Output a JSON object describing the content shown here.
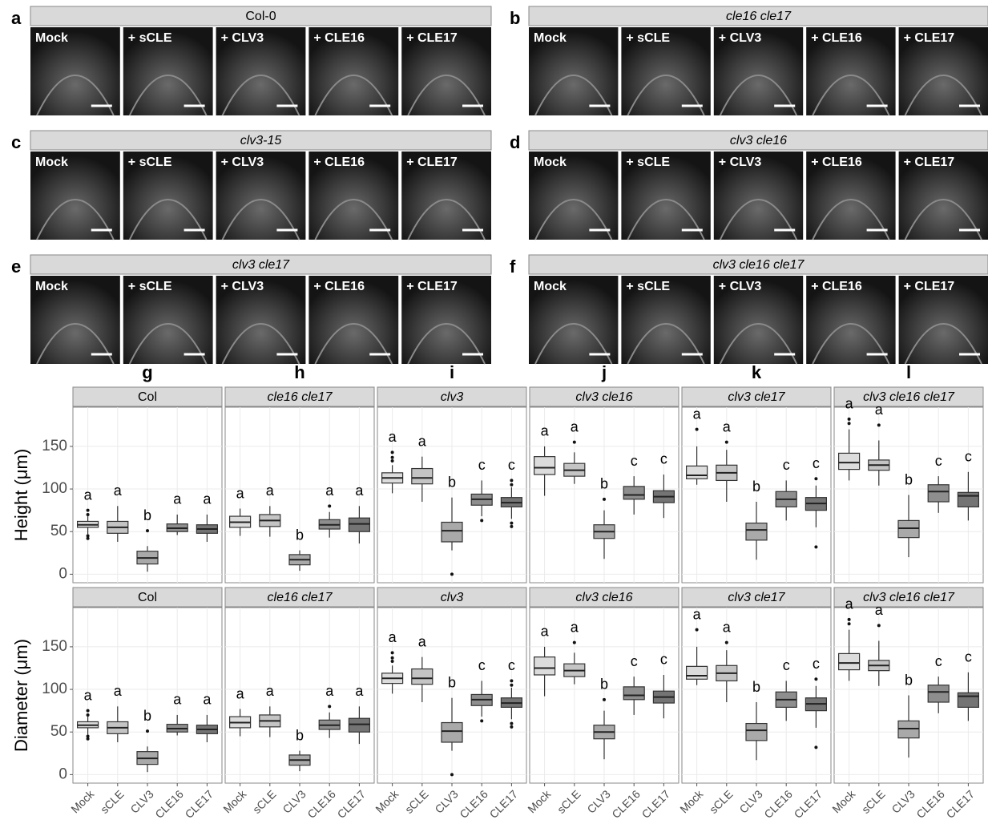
{
  "image_panels": [
    {
      "letter": "a",
      "title": "Col-0",
      "labels": [
        "Mock",
        "+ sCLE",
        "+ CLV3",
        "+ CLE16",
        "+ CLE17"
      ]
    },
    {
      "letter": "b",
      "title": "cle16 cle17",
      "labels": [
        "Mock",
        "+ sCLE",
        "+ CLV3",
        "+ CLE16",
        "+ CLE17"
      ]
    },
    {
      "letter": "c",
      "title": "clv3-15",
      "labels": [
        "Mock",
        "+ sCLE",
        "+ CLV3",
        "+ CLE16",
        "+ CLE17"
      ]
    },
    {
      "letter": "d",
      "title": "clv3 cle16",
      "labels": [
        "Mock",
        "+ sCLE",
        "+ CLV3",
        "+ CLE16",
        "+ CLE17"
      ]
    },
    {
      "letter": "e",
      "title": "clv3 cle17",
      "labels": [
        "Mock",
        "+ sCLE",
        "+ CLV3",
        "+ CLE16",
        "+ CLE17"
      ]
    },
    {
      "letter": "f",
      "title": "clv3 cle16 cle17",
      "labels": [
        "Mock",
        "+ sCLE",
        "+ CLV3",
        "+ CLE16",
        "+ CLE17"
      ]
    }
  ],
  "chart_data": [
    {
      "type": "box",
      "panel_letter": "g",
      "title": "Col",
      "ylabel": "Height (μm)",
      "ylim": [
        -10,
        196
      ],
      "yticks": [
        0,
        50,
        100,
        150
      ],
      "grid": true,
      "colors": [
        "#dcdcdc",
        "#c4c4c4",
        "#a9a9a9",
        "#8e8e8e",
        "#747474"
      ],
      "boxes": [
        {
          "whislo": 47,
          "q1": 55,
          "med": 58,
          "q3": 62,
          "whishi": 68,
          "fliers": [
            42,
            45,
            70,
            75
          ],
          "group": "a"
        },
        {
          "whislo": 38,
          "q1": 48,
          "med": 55,
          "q3": 62,
          "whishi": 80,
          "fliers": [],
          "group": "a"
        },
        {
          "whislo": 3,
          "q1": 12,
          "med": 19,
          "q3": 27,
          "whishi": 33,
          "fliers": [
            51
          ],
          "group": "b"
        },
        {
          "whislo": 46,
          "q1": 50,
          "med": 54,
          "q3": 59,
          "whishi": 70,
          "fliers": [],
          "group": "a"
        },
        {
          "whislo": 38,
          "q1": 48,
          "med": 53,
          "q3": 58,
          "whishi": 70,
          "fliers": [],
          "group": "a"
        }
      ]
    },
    {
      "type": "box",
      "panel_letter": "h",
      "title": "cle16 cle17",
      "ylim": [
        -10,
        196
      ],
      "yticks": [
        0,
        50,
        100,
        150
      ],
      "grid": true,
      "colors": [
        "#dcdcdc",
        "#c4c4c4",
        "#a9a9a9",
        "#8e8e8e",
        "#747474"
      ],
      "boxes": [
        {
          "whislo": 45,
          "q1": 55,
          "med": 61,
          "q3": 68,
          "whishi": 77,
          "fliers": [],
          "group": "a"
        },
        {
          "whislo": 44,
          "q1": 56,
          "med": 63,
          "q3": 70,
          "whishi": 80,
          "fliers": [],
          "group": "a"
        },
        {
          "whislo": 4,
          "q1": 11,
          "med": 17,
          "q3": 23,
          "whishi": 28,
          "fliers": [],
          "group": "b"
        },
        {
          "whislo": 43,
          "q1": 53,
          "med": 58,
          "q3": 64,
          "whishi": 73,
          "fliers": [
            80
          ],
          "group": "a"
        },
        {
          "whislo": 36,
          "q1": 50,
          "med": 59,
          "q3": 66,
          "whishi": 80,
          "fliers": [],
          "group": "a"
        }
      ]
    },
    {
      "type": "box",
      "panel_letter": "i",
      "title": "clv3",
      "ylim": [
        -10,
        196
      ],
      "yticks": [
        0,
        50,
        100,
        150
      ],
      "grid": true,
      "colors": [
        "#dcdcdc",
        "#c4c4c4",
        "#a9a9a9",
        "#8e8e8e",
        "#747474"
      ],
      "boxes": [
        {
          "whislo": 95,
          "q1": 107,
          "med": 113,
          "q3": 119,
          "whishi": 128,
          "fliers": [
            133,
            137,
            143
          ],
          "group": "a"
        },
        {
          "whislo": 85,
          "q1": 106,
          "med": 113,
          "q3": 124,
          "whishi": 138,
          "fliers": [],
          "group": "a"
        },
        {
          "whislo": 28,
          "q1": 38,
          "med": 51,
          "q3": 61,
          "whishi": 90,
          "fliers": [
            0
          ],
          "group": "b"
        },
        {
          "whislo": 68,
          "q1": 81,
          "med": 88,
          "q3": 94,
          "whishi": 110,
          "fliers": [
            63
          ],
          "group": "c"
        },
        {
          "whislo": 65,
          "q1": 79,
          "med": 84,
          "q3": 90,
          "whishi": 102,
          "fliers": [
            56,
            60,
            105,
            110
          ],
          "group": "c"
        }
      ]
    },
    {
      "type": "box",
      "panel_letter": "j",
      "title": "clv3 cle16",
      "ylim": [
        -10,
        196
      ],
      "yticks": [
        0,
        50,
        100,
        150
      ],
      "grid": true,
      "colors": [
        "#dcdcdc",
        "#c4c4c4",
        "#a9a9a9",
        "#8e8e8e",
        "#747474"
      ],
      "boxes": [
        {
          "whislo": 92,
          "q1": 117,
          "med": 125,
          "q3": 138,
          "whishi": 150,
          "fliers": [],
          "group": "a"
        },
        {
          "whislo": 106,
          "q1": 115,
          "med": 122,
          "q3": 130,
          "whishi": 143,
          "fliers": [
            155
          ],
          "group": "a"
        },
        {
          "whislo": 18,
          "q1": 42,
          "med": 50,
          "q3": 58,
          "whishi": 75,
          "fliers": [
            88
          ],
          "group": "b"
        },
        {
          "whislo": 70,
          "q1": 88,
          "med": 93,
          "q3": 103,
          "whishi": 115,
          "fliers": [],
          "group": "c"
        },
        {
          "whislo": 66,
          "q1": 84,
          "med": 91,
          "q3": 98,
          "whishi": 117,
          "fliers": [],
          "group": "c"
        }
      ]
    },
    {
      "type": "box",
      "panel_letter": "k",
      "title": "clv3 cle17",
      "ylim": [
        -10,
        196
      ],
      "yticks": [
        0,
        50,
        100,
        150
      ],
      "grid": true,
      "colors": [
        "#dcdcdc",
        "#c4c4c4",
        "#a9a9a9",
        "#8e8e8e",
        "#747474"
      ],
      "boxes": [
        {
          "whislo": 105,
          "q1": 112,
          "med": 116,
          "q3": 127,
          "whishi": 150,
          "fliers": [
            170
          ],
          "group": "a"
        },
        {
          "whislo": 85,
          "q1": 110,
          "med": 119,
          "q3": 128,
          "whishi": 146,
          "fliers": [
            155
          ],
          "group": "a"
        },
        {
          "whislo": 17,
          "q1": 40,
          "med": 52,
          "q3": 60,
          "whishi": 85,
          "fliers": [],
          "group": "b"
        },
        {
          "whislo": 63,
          "q1": 79,
          "med": 88,
          "q3": 97,
          "whishi": 110,
          "fliers": [],
          "group": "c"
        },
        {
          "whislo": 55,
          "q1": 75,
          "med": 83,
          "q3": 90,
          "whishi": 104,
          "fliers": [
            32,
            112
          ],
          "group": "c"
        }
      ]
    },
    {
      "type": "box",
      "panel_letter": "l",
      "title": "clv3 cle16 cle17",
      "ylim": [
        -10,
        196
      ],
      "yticks": [
        0,
        50,
        100,
        150
      ],
      "grid": true,
      "colors": [
        "#dcdcdc",
        "#c4c4c4",
        "#a9a9a9",
        "#8e8e8e",
        "#747474"
      ],
      "boxes": [
        {
          "whislo": 110,
          "q1": 123,
          "med": 131,
          "q3": 142,
          "whishi": 170,
          "fliers": [
            177,
            182
          ],
          "group": "a"
        },
        {
          "whislo": 104,
          "q1": 122,
          "med": 128,
          "q3": 134,
          "whishi": 157,
          "fliers": [
            175
          ],
          "group": "a"
        },
        {
          "whislo": 20,
          "q1": 43,
          "med": 54,
          "q3": 63,
          "whishi": 93,
          "fliers": [],
          "group": "b"
        },
        {
          "whislo": 72,
          "q1": 85,
          "med": 97,
          "q3": 105,
          "whishi": 115,
          "fliers": [],
          "group": "c"
        },
        {
          "whislo": 63,
          "q1": 79,
          "med": 92,
          "q3": 96,
          "whishi": 120,
          "fliers": [],
          "group": "c"
        }
      ]
    },
    {
      "type": "box",
      "title": "Col",
      "ylabel": "Diameter (μm)",
      "categories": [
        "Mock",
        "sCLE",
        "CLV3",
        "CLE16",
        "CLE17"
      ],
      "ylim": [
        -10,
        196
      ],
      "yticks": [
        0,
        50,
        100,
        150
      ],
      "grid": true,
      "colors": [
        "#dcdcdc",
        "#c4c4c4",
        "#a9a9a9",
        "#8e8e8e",
        "#747474"
      ],
      "boxes": [
        {
          "whislo": 47,
          "q1": 55,
          "med": 58,
          "q3": 62,
          "whishi": 68,
          "fliers": [
            42,
            45,
            70,
            75
          ],
          "group": "a"
        },
        {
          "whislo": 38,
          "q1": 48,
          "med": 55,
          "q3": 62,
          "whishi": 80,
          "fliers": [],
          "group": "a"
        },
        {
          "whislo": 3,
          "q1": 12,
          "med": 19,
          "q3": 27,
          "whishi": 33,
          "fliers": [
            51
          ],
          "group": "b"
        },
        {
          "whislo": 46,
          "q1": 50,
          "med": 54,
          "q3": 59,
          "whishi": 70,
          "fliers": [],
          "group": "a"
        },
        {
          "whislo": 38,
          "q1": 48,
          "med": 53,
          "q3": 58,
          "whishi": 70,
          "fliers": [],
          "group": "a"
        }
      ]
    },
    {
      "type": "box",
      "title": "cle16 cle17",
      "categories": [
        "Mock",
        "sCLE",
        "CLV3",
        "CLE16",
        "CLE17"
      ],
      "ylim": [
        -10,
        196
      ],
      "yticks": [
        0,
        50,
        100,
        150
      ],
      "grid": true,
      "colors": [
        "#dcdcdc",
        "#c4c4c4",
        "#a9a9a9",
        "#8e8e8e",
        "#747474"
      ],
      "boxes": [
        {
          "whislo": 45,
          "q1": 55,
          "med": 61,
          "q3": 68,
          "whishi": 77,
          "fliers": [],
          "group": "a"
        },
        {
          "whislo": 44,
          "q1": 56,
          "med": 63,
          "q3": 70,
          "whishi": 80,
          "fliers": [],
          "group": "a"
        },
        {
          "whislo": 4,
          "q1": 11,
          "med": 17,
          "q3": 23,
          "whishi": 28,
          "fliers": [],
          "group": "b"
        },
        {
          "whislo": 43,
          "q1": 53,
          "med": 58,
          "q3": 64,
          "whishi": 73,
          "fliers": [
            80
          ],
          "group": "a"
        },
        {
          "whislo": 36,
          "q1": 50,
          "med": 59,
          "q3": 66,
          "whishi": 80,
          "fliers": [],
          "group": "a"
        }
      ]
    },
    {
      "type": "box",
      "title": "clv3",
      "categories": [
        "Mock",
        "sCLE",
        "CLV3",
        "CLE16",
        "CLE17"
      ],
      "ylim": [
        -10,
        196
      ],
      "yticks": [
        0,
        50,
        100,
        150
      ],
      "grid": true,
      "colors": [
        "#dcdcdc",
        "#c4c4c4",
        "#a9a9a9",
        "#8e8e8e",
        "#747474"
      ],
      "boxes": [
        {
          "whislo": 95,
          "q1": 107,
          "med": 113,
          "q3": 119,
          "whishi": 128,
          "fliers": [
            133,
            137,
            143
          ],
          "group": "a"
        },
        {
          "whislo": 85,
          "q1": 106,
          "med": 113,
          "q3": 124,
          "whishi": 138,
          "fliers": [],
          "group": "a"
        },
        {
          "whislo": 28,
          "q1": 38,
          "med": 51,
          "q3": 61,
          "whishi": 90,
          "fliers": [
            0
          ],
          "group": "b"
        },
        {
          "whislo": 68,
          "q1": 81,
          "med": 88,
          "q3": 94,
          "whishi": 110,
          "fliers": [
            63
          ],
          "group": "c"
        },
        {
          "whislo": 65,
          "q1": 79,
          "med": 84,
          "q3": 90,
          "whishi": 102,
          "fliers": [
            56,
            60,
            105,
            110
          ],
          "group": "c"
        }
      ]
    },
    {
      "type": "box",
      "title": "clv3 cle16",
      "categories": [
        "Mock",
        "sCLE",
        "CLV3",
        "CLE16",
        "CLE17"
      ],
      "ylim": [
        -10,
        196
      ],
      "yticks": [
        0,
        50,
        100,
        150
      ],
      "grid": true,
      "colors": [
        "#dcdcdc",
        "#c4c4c4",
        "#a9a9a9",
        "#8e8e8e",
        "#747474"
      ],
      "boxes": [
        {
          "whislo": 92,
          "q1": 117,
          "med": 125,
          "q3": 138,
          "whishi": 150,
          "fliers": [],
          "group": "a"
        },
        {
          "whislo": 106,
          "q1": 115,
          "med": 122,
          "q3": 130,
          "whishi": 143,
          "fliers": [
            155
          ],
          "group": "a"
        },
        {
          "whislo": 18,
          "q1": 42,
          "med": 50,
          "q3": 58,
          "whishi": 75,
          "fliers": [
            88
          ],
          "group": "b"
        },
        {
          "whislo": 70,
          "q1": 88,
          "med": 93,
          "q3": 103,
          "whishi": 115,
          "fliers": [],
          "group": "c"
        },
        {
          "whislo": 66,
          "q1": 84,
          "med": 91,
          "q3": 98,
          "whishi": 117,
          "fliers": [],
          "group": "c"
        }
      ]
    },
    {
      "type": "box",
      "title": "clv3 cle17",
      "categories": [
        "Mock",
        "sCLE",
        "CLV3",
        "CLE16",
        "CLE17"
      ],
      "ylim": [
        -10,
        196
      ],
      "yticks": [
        0,
        50,
        100,
        150
      ],
      "grid": true,
      "colors": [
        "#dcdcdc",
        "#c4c4c4",
        "#a9a9a9",
        "#8e8e8e",
        "#747474"
      ],
      "boxes": [
        {
          "whislo": 105,
          "q1": 112,
          "med": 116,
          "q3": 127,
          "whishi": 150,
          "fliers": [
            170
          ],
          "group": "a"
        },
        {
          "whislo": 85,
          "q1": 110,
          "med": 119,
          "q3": 128,
          "whishi": 146,
          "fliers": [
            155
          ],
          "group": "a"
        },
        {
          "whislo": 17,
          "q1": 40,
          "med": 52,
          "q3": 60,
          "whishi": 85,
          "fliers": [],
          "group": "b"
        },
        {
          "whislo": 63,
          "q1": 79,
          "med": 88,
          "q3": 97,
          "whishi": 110,
          "fliers": [],
          "group": "c"
        },
        {
          "whislo": 55,
          "q1": 75,
          "med": 83,
          "q3": 90,
          "whishi": 104,
          "fliers": [
            32,
            112
          ],
          "group": "c"
        }
      ]
    },
    {
      "type": "box",
      "title": "clv3 cle16 cle17",
      "categories": [
        "Mock",
        "sCLE",
        "CLV3",
        "CLE16",
        "CLE17"
      ],
      "ylim": [
        -10,
        196
      ],
      "yticks": [
        0,
        50,
        100,
        150
      ],
      "grid": true,
      "colors": [
        "#dcdcdc",
        "#c4c4c4",
        "#a9a9a9",
        "#8e8e8e",
        "#747474"
      ],
      "boxes": [
        {
          "whislo": 110,
          "q1": 123,
          "med": 131,
          "q3": 142,
          "whishi": 170,
          "fliers": [
            177,
            182
          ],
          "group": "a"
        },
        {
          "whislo": 104,
          "q1": 122,
          "med": 128,
          "q3": 134,
          "whishi": 157,
          "fliers": [
            175
          ],
          "group": "a"
        },
        {
          "whislo": 20,
          "q1": 43,
          "med": 54,
          "q3": 63,
          "whishi": 93,
          "fliers": [],
          "group": "b"
        },
        {
          "whislo": 72,
          "q1": 85,
          "med": 97,
          "q3": 105,
          "whishi": 115,
          "fliers": [],
          "group": "c"
        },
        {
          "whislo": 63,
          "q1": 79,
          "med": 92,
          "q3": 96,
          "whishi": 120,
          "fliers": [],
          "group": "c"
        }
      ]
    }
  ]
}
